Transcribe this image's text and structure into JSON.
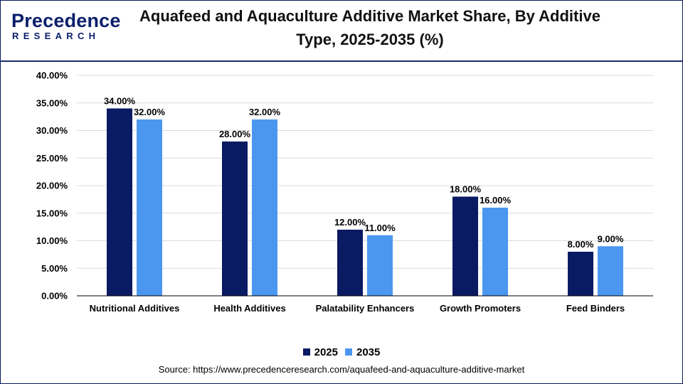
{
  "header": {
    "logo_top": "Precedence",
    "logo_bottom": "RESEARCH",
    "title": "Aquafeed and Aquaculture Additive Market Share, By Additive Type, 2025-2035 (%)"
  },
  "colors": {
    "series_2025": "#0a1a63",
    "series_2035": "#4b97ef",
    "grid": "#d9d9d9",
    "axis": "#000000",
    "brand": "#0b1f6b"
  },
  "chart_data": {
    "type": "bar",
    "title": "Aquafeed and Aquaculture Additive Market Share, By Additive Type, 2025-2035 (%)",
    "categories": [
      "Nutritional Additives",
      "Health Additives",
      "Palatability Enhancers",
      "Growth Promoters",
      "Feed Binders"
    ],
    "series": [
      {
        "name": "2025",
        "values": [
          34,
          28,
          12,
          18,
          8
        ],
        "labels": [
          "34.00%",
          "28.00%",
          "12.00%",
          "18.00%",
          "8.00%"
        ]
      },
      {
        "name": "2035",
        "values": [
          32,
          32,
          11,
          16,
          9
        ],
        "labels": [
          "32.00%",
          "32.00%",
          "11.00%",
          "16.00%",
          "9.00%"
        ]
      }
    ],
    "ylim": [
      0,
      40
    ],
    "yticks": [
      0,
      5,
      10,
      15,
      20,
      25,
      30,
      35,
      40
    ],
    "ytick_labels": [
      "0.00%",
      "5.00%",
      "10.00%",
      "15.00%",
      "20.00%",
      "25.00%",
      "30.00%",
      "35.00%",
      "40.00%"
    ],
    "xlabel": "",
    "ylabel": "",
    "grid": true,
    "legend_position": "bottom-center"
  },
  "legend": {
    "items": [
      {
        "label": "2025"
      },
      {
        "label": "2035"
      }
    ]
  },
  "source": "Source: https://www.precedenceresearch.com/aquafeed-and-aquaculture-additive-market"
}
